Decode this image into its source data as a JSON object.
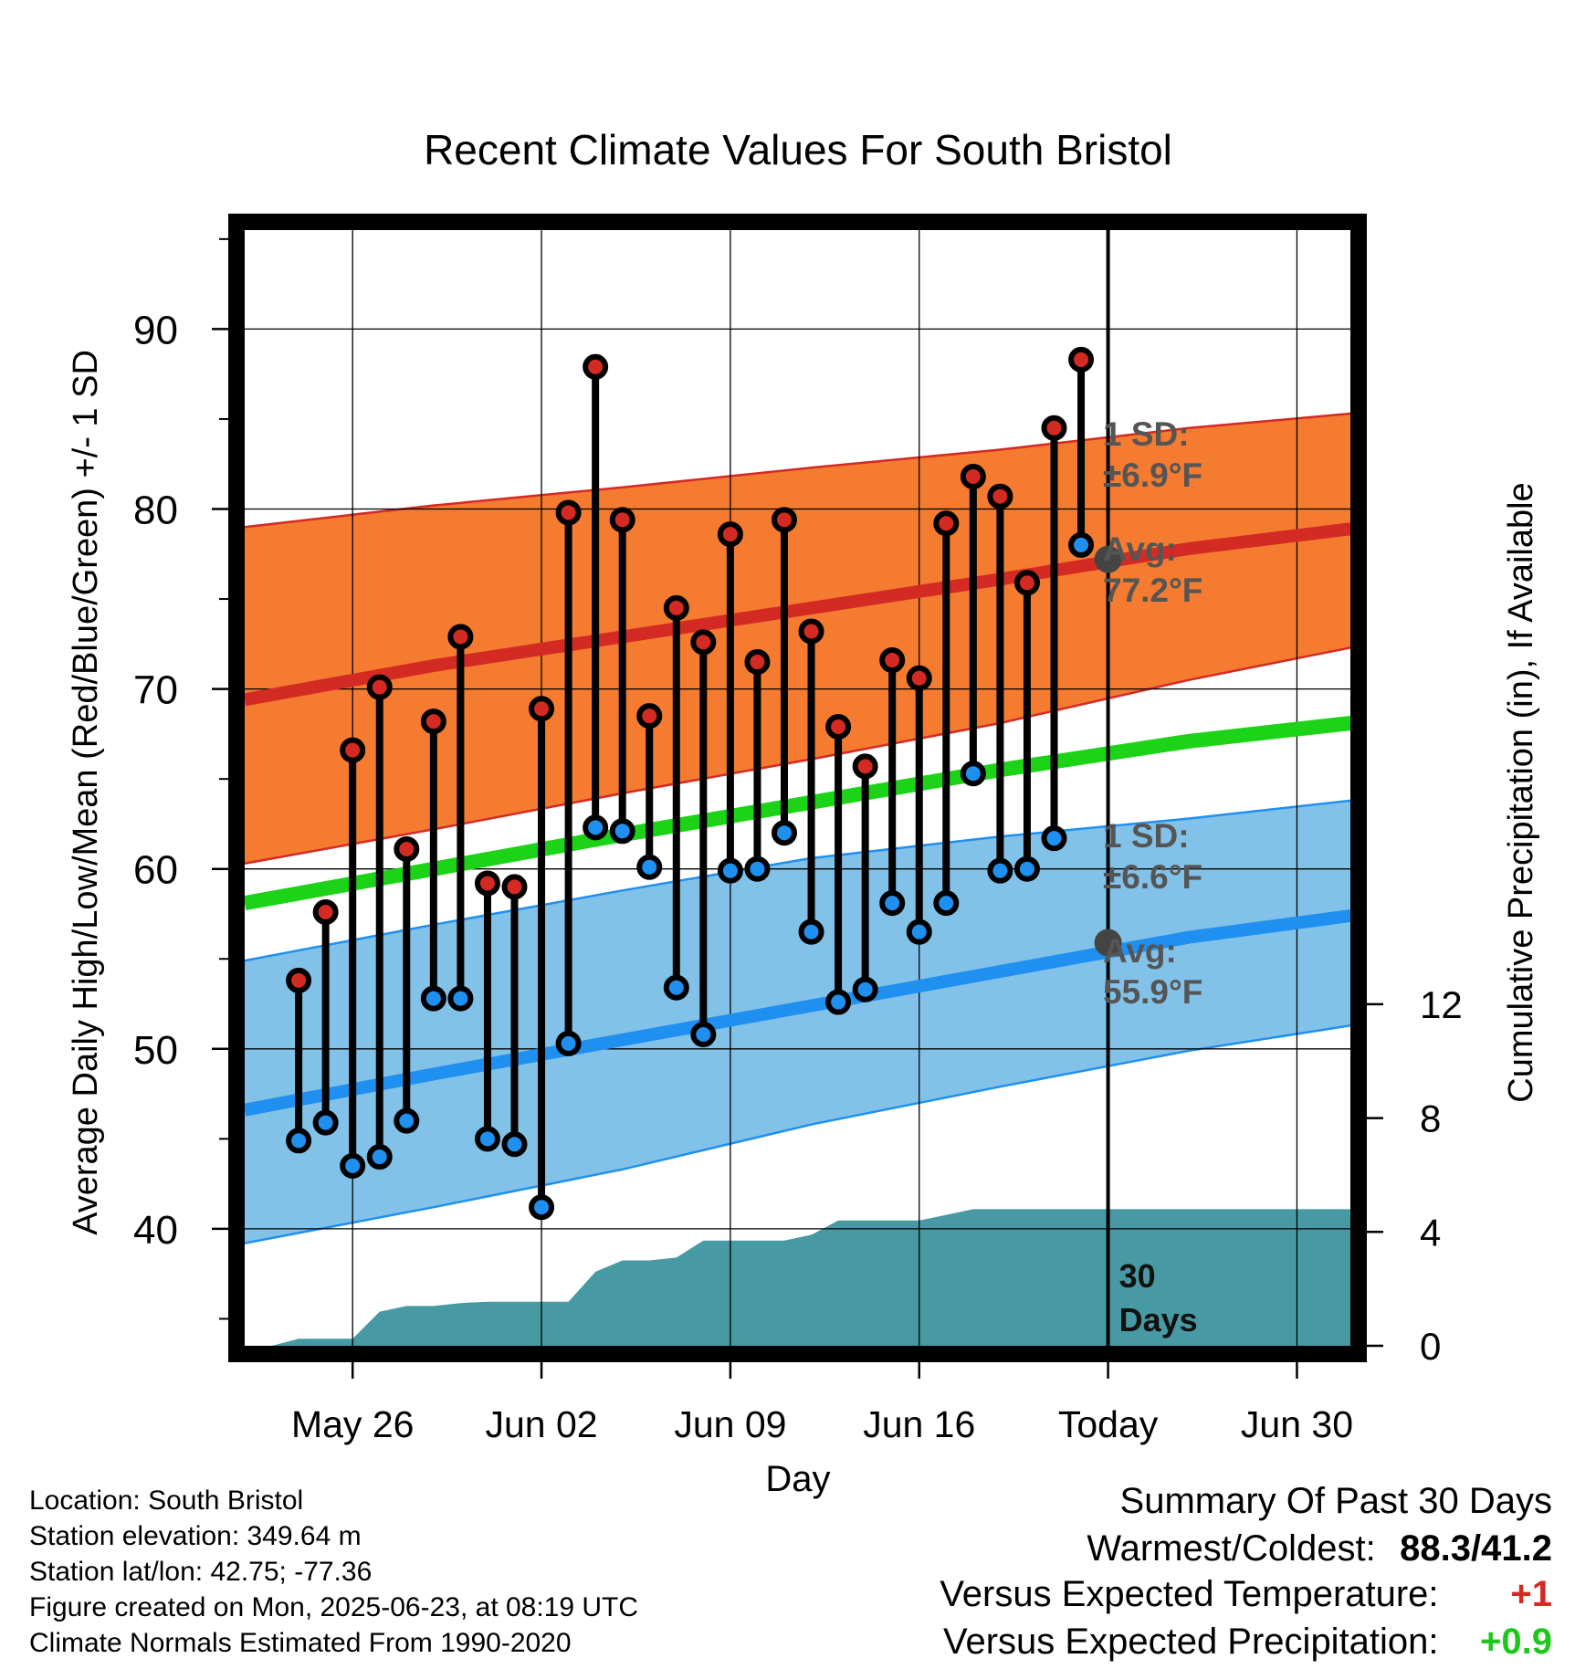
{
  "chart_data": {
    "type": "line",
    "title": "Recent Climate Values For South Bristol",
    "xlabel": "Day",
    "ylabel": "Average Daily High/Low/Mean (Red/Blue/Green) +/- 1 SD",
    "y2label": "Cumulative Precipitation (in), If Available",
    "xlim": [
      "2025-05-22",
      "2025-07-02"
    ],
    "ylim": [
      33.5,
      95.5
    ],
    "y2lim": [
      0,
      39.2
    ],
    "yticks": [
      40,
      50,
      60,
      70,
      80,
      90
    ],
    "y2ticks": [
      0,
      4,
      8,
      12
    ],
    "xticks": [
      {
        "date": "2025-05-26",
        "label": "May 26"
      },
      {
        "date": "2025-06-02",
        "label": "Jun 02"
      },
      {
        "date": "2025-06-09",
        "label": "Jun 09"
      },
      {
        "date": "2025-06-16",
        "label": "Jun 16"
      },
      {
        "date": "2025-06-23",
        "label": "Today"
      },
      {
        "date": "2025-06-30",
        "label": "Jun 30"
      }
    ],
    "grid": true,
    "dates": [
      "2025-05-24",
      "2025-05-25",
      "2025-05-26",
      "2025-05-27",
      "2025-05-28",
      "2025-05-29",
      "2025-05-30",
      "2025-05-31",
      "2025-06-01",
      "2025-06-02",
      "2025-06-03",
      "2025-06-04",
      "2025-06-05",
      "2025-06-06",
      "2025-06-07",
      "2025-06-08",
      "2025-06-09",
      "2025-06-10",
      "2025-06-11",
      "2025-06-12",
      "2025-06-13",
      "2025-06-14",
      "2025-06-15",
      "2025-06-16",
      "2025-06-17",
      "2025-06-18",
      "2025-06-19",
      "2025-06-20",
      "2025-06-21",
      "2025-06-22"
    ],
    "highs": [
      53.8,
      57.6,
      66.6,
      70.1,
      61.1,
      68.2,
      72.9,
      59.2,
      59.0,
      68.9,
      79.8,
      87.9,
      79.4,
      68.5,
      74.5,
      72.6,
      78.6,
      71.5,
      79.4,
      73.2,
      67.9,
      65.7,
      71.6,
      70.6,
      79.2,
      81.8,
      80.7,
      75.9,
      84.5,
      88.3
    ],
    "lows": [
      44.9,
      45.9,
      43.5,
      44.0,
      46.0,
      52.8,
      52.8,
      45.0,
      44.7,
      41.2,
      50.3,
      62.3,
      62.1,
      60.1,
      53.4,
      50.8,
      59.9,
      60.0,
      62.0,
      56.5,
      52.6,
      53.3,
      58.1,
      56.5,
      58.1,
      65.3,
      59.9,
      60.0,
      61.7,
      78.0
    ],
    "normal_dates": [
      "2025-05-22",
      "2025-05-29",
      "2025-06-05",
      "2025-06-12",
      "2025-06-19",
      "2025-06-26",
      "2025-07-02"
    ],
    "normal_high": [
      69.4,
      71.3,
      72.9,
      74.5,
      76.1,
      77.8,
      78.9
    ],
    "normal_high_upper": [
      79.0,
      80.2,
      81.2,
      82.3,
      83.3,
      84.5,
      85.3
    ],
    "normal_high_lower": [
      60.3,
      62.2,
      64.2,
      66.1,
      68.1,
      70.5,
      72.3
    ],
    "normal_mean": [
      58.1,
      60.0,
      61.9,
      63.7,
      65.5,
      67.1,
      68.1
    ],
    "normal_low": [
      46.6,
      48.6,
      50.5,
      52.4,
      54.3,
      56.2,
      57.4
    ],
    "normal_low_upper": [
      54.9,
      56.9,
      58.8,
      60.6,
      61.8,
      62.8,
      63.8
    ],
    "normal_low_lower": [
      39.2,
      41.2,
      43.3,
      45.8,
      47.9,
      49.9,
      51.3
    ],
    "precip_dates": [
      "2025-05-23",
      "2025-05-24",
      "2025-05-25",
      "2025-05-26",
      "2025-05-27",
      "2025-05-28",
      "2025-05-29",
      "2025-05-30",
      "2025-05-31",
      "2025-06-01",
      "2025-06-02",
      "2025-06-03",
      "2025-06-04",
      "2025-06-05",
      "2025-06-06",
      "2025-06-07",
      "2025-06-08",
      "2025-06-09",
      "2025-06-10",
      "2025-06-11",
      "2025-06-12",
      "2025-06-13",
      "2025-06-14",
      "2025-06-15",
      "2025-06-16",
      "2025-06-17",
      "2025-06-18",
      "2025-06-19",
      "2025-06-20",
      "2025-06-21",
      "2025-06-22",
      "2025-07-02"
    ],
    "precip_cum": [
      0,
      0.25,
      0.25,
      0.25,
      1.2,
      1.4,
      1.4,
      1.5,
      1.55,
      1.55,
      1.55,
      1.55,
      2.6,
      3.0,
      3.0,
      3.1,
      3.7,
      3.7,
      3.7,
      3.7,
      3.9,
      4.4,
      4.4,
      4.4,
      4.4,
      4.6,
      4.8,
      4.8,
      4.8,
      4.8,
      4.8,
      4.8
    ],
    "today_marker": {
      "date": "2025-06-23",
      "label_line1": "30",
      "label_line2": "Days"
    },
    "annotations": {
      "high_sd": {
        "line1": "1 SD:",
        "line2": "±6.9°F"
      },
      "high_avg": {
        "line1": "Avg:",
        "line2": "77.2°F",
        "value": 77.2
      },
      "low_sd": {
        "line1": "1 SD:",
        "line2": "±6.6°F"
      },
      "low_avg": {
        "line1": "Avg:",
        "line2": "55.9°F",
        "value": 55.9
      }
    },
    "colors": {
      "high_band": "#f47b2f",
      "high_line": "#d42a24",
      "low_band": "#83c2e8",
      "low_line": "#1f90f0",
      "mean_line": "#1dd317",
      "precip": "#479aa4",
      "high_dot": "#d42a24",
      "low_dot": "#1f90f0",
      "annotation": "#555555"
    }
  },
  "info": {
    "location": "Location: South Bristol",
    "elevation": "Station elevation: 349.64 m",
    "latlon": "Station lat/lon: 42.75; -77.36",
    "created": "Figure created on Mon, 2025-06-23, at 08:19 UTC",
    "normals": "Climate Normals Estimated From 1990-2020"
  },
  "summary": {
    "title": "Summary Of Past 30 Days",
    "warm_cold_label": "Warmest/Coldest:",
    "warm_cold_value": "88.3/41.2",
    "temp_label": "Versus Expected Temperature:",
    "temp_value": "+1",
    "temp_color": "#d42a24",
    "precip_label": "Versus Expected Precipitation:",
    "precip_value": "+0.9",
    "precip_color": "#1dc81a"
  }
}
